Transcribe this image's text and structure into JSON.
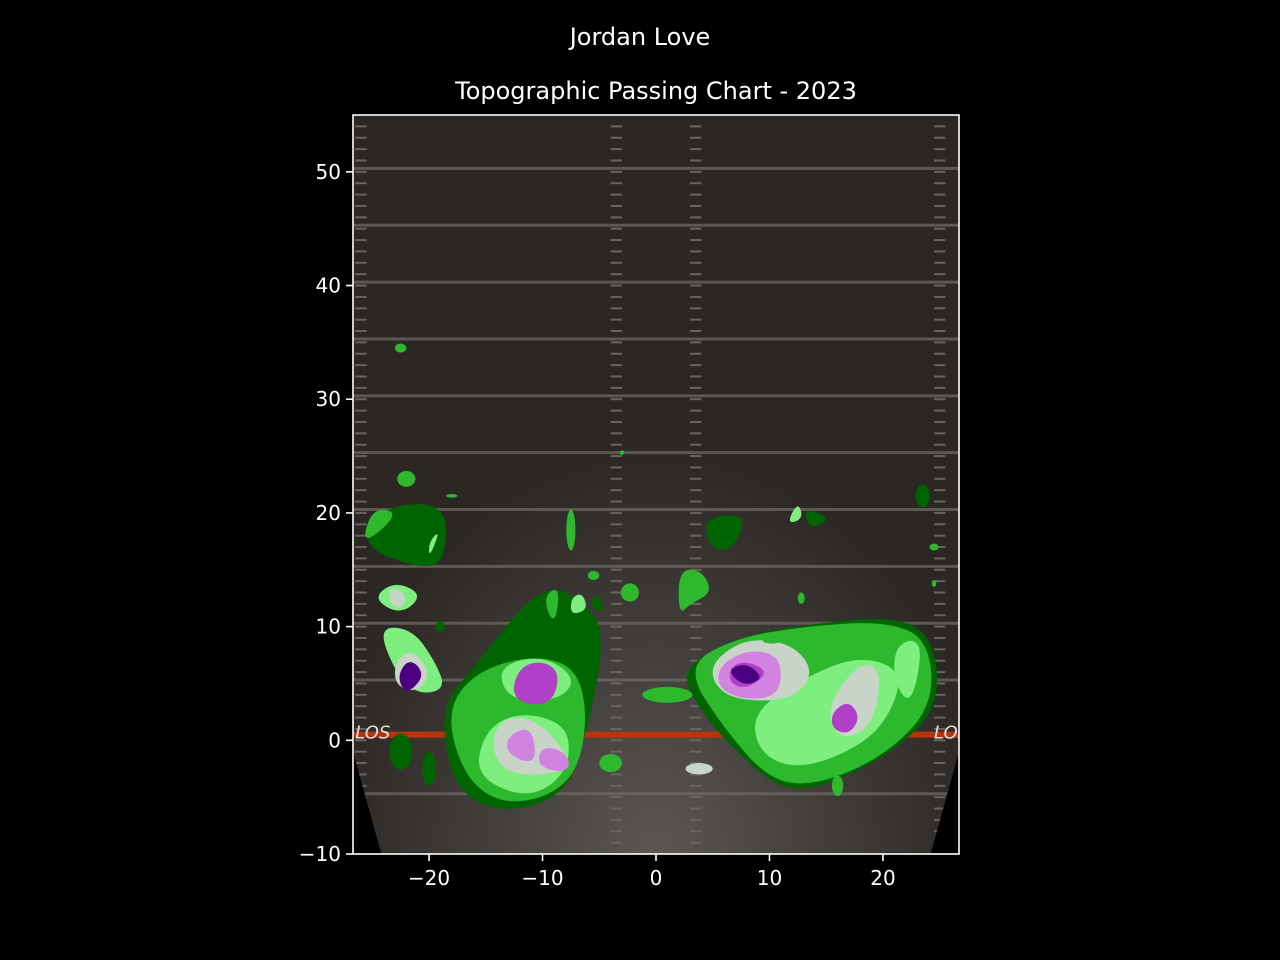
{
  "chart_data": {
    "type": "heatmap",
    "title": "Jordan Love",
    "subtitle": "Topographic Passing Chart - 2023",
    "xlabel": "",
    "ylabel": "",
    "xlim": [
      -26.7,
      26.7
    ],
    "ylim": [
      -10,
      55
    ],
    "x_ticks": [
      -20,
      -10,
      0,
      10,
      20
    ],
    "y_ticks": [
      -10,
      0,
      10,
      20,
      30,
      40,
      50
    ],
    "field_markers": {
      "line_of_scrimmage_label": "LOS",
      "line_of_scrimmage_y": 0.5
    },
    "grid": false,
    "density_levels": [
      {
        "level": 1,
        "color": "#006400"
      },
      {
        "level": 2,
        "color": "#2db82d"
      },
      {
        "level": 3,
        "color": "#7eee7e"
      },
      {
        "level": 4,
        "color": "#c8d4c8"
      },
      {
        "level": 5,
        "color": "#d282e0"
      },
      {
        "level": 6,
        "color": "#b040c8"
      },
      {
        "level": 7,
        "color": "#4b0082"
      }
    ],
    "regions": [
      {
        "name": "left-shallow",
        "level": 1,
        "points": [
          [
            -10,
            14
          ],
          [
            -6,
            12
          ],
          [
            -4.5,
            9
          ],
          [
            -6,
            1
          ],
          [
            -8,
            -5
          ],
          [
            -14,
            -6.5
          ],
          [
            -18,
            -4
          ],
          [
            -19,
            3
          ],
          [
            -16,
            6.5
          ]
        ]
      },
      {
        "name": "left-shallow",
        "level": 2,
        "points": [
          [
            -16,
            6
          ],
          [
            -11,
            7.5
          ],
          [
            -7,
            6.5
          ],
          [
            -6,
            2
          ],
          [
            -7,
            -3
          ],
          [
            -10,
            -5.2
          ],
          [
            -14,
            -5.5
          ],
          [
            -17,
            -3
          ],
          [
            -18.5,
            2.5
          ]
        ]
      },
      {
        "name": "left-shallow",
        "level": 3,
        "points": [
          [
            -14,
            6.5
          ],
          [
            -10,
            7.5
          ],
          [
            -7,
            5.5
          ],
          [
            -8.5,
            3.5
          ],
          [
            -13,
            3.5
          ]
        ]
      },
      {
        "name": "left-shallow",
        "level": 3,
        "points": [
          [
            -15,
            1
          ],
          [
            -12,
            2.5
          ],
          [
            -8,
            1.5
          ],
          [
            -7.5,
            -1.5
          ],
          [
            -9,
            -4
          ],
          [
            -12,
            -5
          ],
          [
            -16,
            -3
          ]
        ]
      },
      {
        "name": "left-shallow",
        "level": 4,
        "points": [
          [
            -14,
            1.5
          ],
          [
            -12,
            2.2
          ],
          [
            -9.5,
            1
          ],
          [
            -7.5,
            -2
          ],
          [
            -9,
            -3
          ],
          [
            -13,
            -3
          ],
          [
            -14.5,
            -1
          ]
        ]
      },
      {
        "name": "left-shallow",
        "level": 6,
        "points": [
          [
            -12,
            6.5
          ],
          [
            -10,
            7
          ],
          [
            -8.5,
            6
          ],
          [
            -9,
            3.5
          ],
          [
            -11,
            3
          ],
          [
            -12.8,
            4
          ]
        ]
      },
      {
        "name": "left-shallow",
        "level": 5,
        "points": [
          [
            -13,
            0.5
          ],
          [
            -11,
            1.2
          ],
          [
            -10.5,
            -1.5
          ],
          [
            -11.5,
            -2
          ],
          [
            -13.2,
            -1
          ]
        ]
      },
      {
        "name": "left-shallow",
        "level": 5,
        "points": [
          [
            -10,
            -0.5
          ],
          [
            -8,
            -1
          ],
          [
            -7.5,
            -2.5
          ],
          [
            -9,
            -2.8
          ],
          [
            -10.5,
            -2
          ]
        ]
      },
      {
        "name": "left-short",
        "level": 3,
        "points": [
          [
            -24.5,
            10
          ],
          [
            -21.5,
            9.8
          ],
          [
            -19.5,
            7
          ],
          [
            -18.5,
            4.5
          ],
          [
            -21,
            4
          ],
          [
            -23,
            6
          ]
        ]
      },
      {
        "name": "left-short",
        "level": 4,
        "points": [
          [
            -23,
            7
          ],
          [
            -21.5,
            8
          ],
          [
            -19.8,
            6
          ],
          [
            -21,
            4.2
          ],
          [
            -23,
            4.8
          ]
        ]
      },
      {
        "name": "left-short",
        "level": 7,
        "points": [
          [
            -22,
            7
          ],
          [
            -21,
            6.7
          ],
          [
            -20.5,
            5.5
          ],
          [
            -22,
            4
          ],
          [
            -22.8,
            5.5
          ]
        ]
      },
      {
        "name": "left-mid",
        "level": 1,
        "points": [
          [
            -26,
            17
          ],
          [
            -24.5,
            20.5
          ],
          [
            -18.5,
            21
          ],
          [
            -18.5,
            16
          ],
          [
            -20.5,
            15
          ]
        ]
      },
      {
        "name": "left-mid",
        "level": 2,
        "points": [
          [
            -26,
            17
          ],
          [
            -25,
            20.5
          ],
          [
            -22.5,
            20
          ]
        ]
      },
      {
        "name": "left-mid",
        "level": 3,
        "points": [
          [
            -20,
            17.5
          ],
          [
            -19,
            18.5
          ],
          [
            -20,
            16
          ]
        ]
      },
      {
        "name": "left-deep-middle",
        "level": 3,
        "points": [
          [
            -25,
            12.5
          ],
          [
            -23,
            14
          ],
          [
            -20.5,
            12.8
          ],
          [
            -22.5,
            11
          ]
        ]
      },
      {
        "name": "left-deep-middle",
        "level": 4,
        "points": [
          [
            -23.5,
            13.5
          ],
          [
            -22,
            13
          ],
          [
            -22.3,
            11.5
          ],
          [
            -23.5,
            12
          ]
        ]
      },
      {
        "name": "right-shallow",
        "level": 1,
        "points": [
          [
            2.5,
            6.5
          ],
          [
            7,
            9
          ],
          [
            12,
            10
          ],
          [
            21,
            11
          ],
          [
            24.5,
            9
          ],
          [
            25,
            3
          ],
          [
            21,
            -1
          ],
          [
            15,
            -4
          ],
          [
            11,
            -4.5
          ],
          [
            6,
            0
          ],
          [
            3,
            4
          ]
        ]
      },
      {
        "name": "right-shallow",
        "level": 2,
        "points": [
          [
            2.5,
            6.5
          ],
          [
            7,
            9
          ],
          [
            13,
            10
          ],
          [
            20,
            10.5
          ],
          [
            24,
            9
          ],
          [
            24.5,
            3
          ],
          [
            20,
            -1.5
          ],
          [
            14,
            -4
          ],
          [
            10,
            -3.5
          ],
          [
            6,
            1
          ]
        ]
      },
      {
        "name": "right-shallow",
        "level": 3,
        "points": [
          [
            8.5,
            2.5
          ],
          [
            13,
            5.5
          ],
          [
            18,
            7.5
          ],
          [
            22,
            6
          ],
          [
            20,
            1
          ],
          [
            16,
            -1.5
          ],
          [
            12,
            -2.5
          ],
          [
            9,
            -1
          ]
        ]
      },
      {
        "name": "right-shallow",
        "level": 4,
        "points": [
          [
            5,
            7
          ],
          [
            8,
            9
          ],
          [
            12,
            8.5
          ],
          [
            14,
            6
          ],
          [
            12,
            3.5
          ],
          [
            7,
            3.5
          ],
          [
            5,
            5
          ]
        ]
      },
      {
        "name": "right-shallow",
        "level": 4,
        "points": [
          [
            15,
            3
          ],
          [
            18,
            7
          ],
          [
            20,
            6
          ],
          [
            19,
            1
          ],
          [
            16,
            0
          ]
        ]
      },
      {
        "name": "right-shallow",
        "level": 5,
        "points": [
          [
            5.5,
            6.5
          ],
          [
            8,
            8
          ],
          [
            11,
            7.5
          ],
          [
            11,
            4
          ],
          [
            8,
            3.5
          ],
          [
            5.5,
            4.5
          ]
        ]
      },
      {
        "name": "right-shallow",
        "level": 6,
        "points": [
          [
            6.5,
            6.5
          ],
          [
            8,
            7
          ],
          [
            10,
            6
          ],
          [
            8,
            4.5
          ],
          [
            6.5,
            5
          ]
        ]
      },
      {
        "name": "right-shallow",
        "level": 7,
        "points": [
          [
            6.5,
            6.3
          ],
          [
            8,
            6.8
          ],
          [
            9.5,
            5.5
          ],
          [
            8,
            4.8
          ],
          [
            6.8,
            5.5
          ]
        ]
      },
      {
        "name": "right-shallow",
        "level": 6,
        "points": [
          [
            15.5,
            2.5
          ],
          [
            17,
            3.5
          ],
          [
            18,
            2
          ],
          [
            17,
            0.5
          ],
          [
            15.5,
            1
          ]
        ]
      },
      {
        "name": "right-shallow",
        "level": 3,
        "points": [
          [
            21,
            8
          ],
          [
            22.5,
            9
          ],
          [
            23.5,
            8
          ],
          [
            22.5,
            3
          ],
          [
            21,
            5
          ]
        ]
      },
      {
        "name": "right-mid",
        "level": 1,
        "points": [
          [
            4,
            19.5
          ],
          [
            8,
            20
          ],
          [
            7,
            17
          ],
          [
            5,
            16.5
          ]
        ]
      },
      {
        "name": "right-mid",
        "level": 2,
        "points": [
          [
            2,
            15
          ],
          [
            4,
            15
          ],
          [
            5,
            13
          ],
          [
            3,
            12
          ],
          [
            2,
            11
          ]
        ]
      },
      {
        "name": "right-mid",
        "level": 3,
        "points": [
          [
            11.5,
            19
          ],
          [
            12.5,
            21
          ],
          [
            13,
            19.5
          ]
        ]
      },
      {
        "name": "right-mid",
        "level": 1,
        "points": [
          [
            13,
            20.5
          ],
          [
            15.5,
            19.5
          ],
          [
            13.5,
            18.5
          ]
        ]
      },
      {
        "name": "left-middle-deep",
        "level": 1,
        "points": [
          [
            -6,
            12
          ],
          [
            -4.5,
            11
          ],
          [
            -5,
            13
          ]
        ]
      },
      {
        "name": "left-middle-deep",
        "level": 2,
        "points": [
          [
            -9.8,
            12.8
          ],
          [
            -8.5,
            13.5
          ],
          [
            -8.8,
            10.5
          ],
          [
            -9.5,
            11
          ]
        ]
      },
      {
        "name": "left-middle-deep",
        "level": 3,
        "points": [
          [
            -7.5,
            12.5
          ],
          [
            -6.5,
            13
          ],
          [
            -6,
            11.5
          ],
          [
            -7.5,
            11
          ]
        ]
      }
    ],
    "blobs": [
      {
        "x": -22.5,
        "y": 34.5,
        "rx": 0.5,
        "ry": 0.4,
        "level": 2
      },
      {
        "x": -22,
        "y": 23,
        "rx": 0.8,
        "ry": 0.7,
        "level": 2
      },
      {
        "x": -18,
        "y": 21.5,
        "rx": 0.5,
        "ry": 0.15,
        "level": 2
      },
      {
        "x": -7.5,
        "y": 18.5,
        "rx": 0.4,
        "ry": 1.8,
        "level": 2
      },
      {
        "x": -5.5,
        "y": 14.5,
        "rx": 0.5,
        "ry": 0.4,
        "level": 2
      },
      {
        "x": -2.3,
        "y": 13,
        "rx": 0.8,
        "ry": 0.8,
        "level": 2
      },
      {
        "x": -3,
        "y": 25.3,
        "rx": 0.2,
        "ry": 0.2,
        "level": 2
      },
      {
        "x": 1,
        "y": 4,
        "rx": 2.2,
        "ry": 0.7,
        "level": 2
      },
      {
        "x": -19,
        "y": 10,
        "rx": 0.4,
        "ry": 0.5,
        "level": 1
      },
      {
        "x": -22.5,
        "y": -1,
        "rx": 1,
        "ry": 1.6,
        "level": 1
      },
      {
        "x": -20,
        "y": -2.5,
        "rx": 0.6,
        "ry": 1.5,
        "level": 1
      },
      {
        "x": -4,
        "y": -2,
        "rx": 1,
        "ry": 0.8,
        "level": 2
      },
      {
        "x": 3.8,
        "y": -2.5,
        "rx": 1.2,
        "ry": 0.5,
        "level": 4
      },
      {
        "x": 16,
        "y": -4,
        "rx": 0.5,
        "ry": 0.9,
        "level": 2
      },
      {
        "x": 10.2,
        "y": 8.8,
        "rx": 0.8,
        "ry": 0.3,
        "level": 2
      },
      {
        "x": 12.8,
        "y": 12.5,
        "rx": 0.3,
        "ry": 0.5,
        "level": 2
      },
      {
        "x": 23.5,
        "y": 21.5,
        "rx": 0.6,
        "ry": 1,
        "level": 1
      },
      {
        "x": 24.5,
        "y": 17,
        "rx": 0.4,
        "ry": 0.3,
        "level": 2
      },
      {
        "x": 24.5,
        "y": 13.8,
        "rx": 0.2,
        "ry": 0.3,
        "level": 2
      }
    ]
  }
}
